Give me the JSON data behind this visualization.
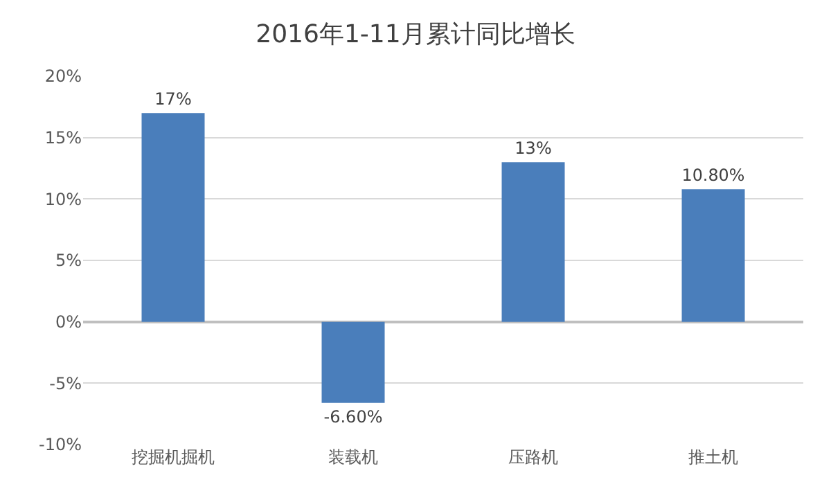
{
  "chart_data": {
    "type": "bar",
    "title": "2016年1-11月累计同比增长",
    "categories": [
      "挖掘机掘机",
      "装载机",
      "压路机",
      "推土机"
    ],
    "values": [
      17,
      -6.6,
      13,
      10.8
    ],
    "value_labels": [
      "17%",
      "-6.60%",
      "13%",
      "10.80%"
    ],
    "color": "#4a7ebb",
    "ylim": [
      -10,
      20
    ],
    "yticks": [
      {
        "value": -10,
        "label": "-10%"
      },
      {
        "value": -5,
        "label": "-5%"
      },
      {
        "value": 0,
        "label": "0%"
      },
      {
        "value": 5,
        "label": "5%"
      },
      {
        "value": 10,
        "label": "10%"
      },
      {
        "value": 15,
        "label": "15%"
      },
      {
        "value": 20,
        "label": "20%"
      }
    ],
    "grid": "y",
    "legend": false
  }
}
